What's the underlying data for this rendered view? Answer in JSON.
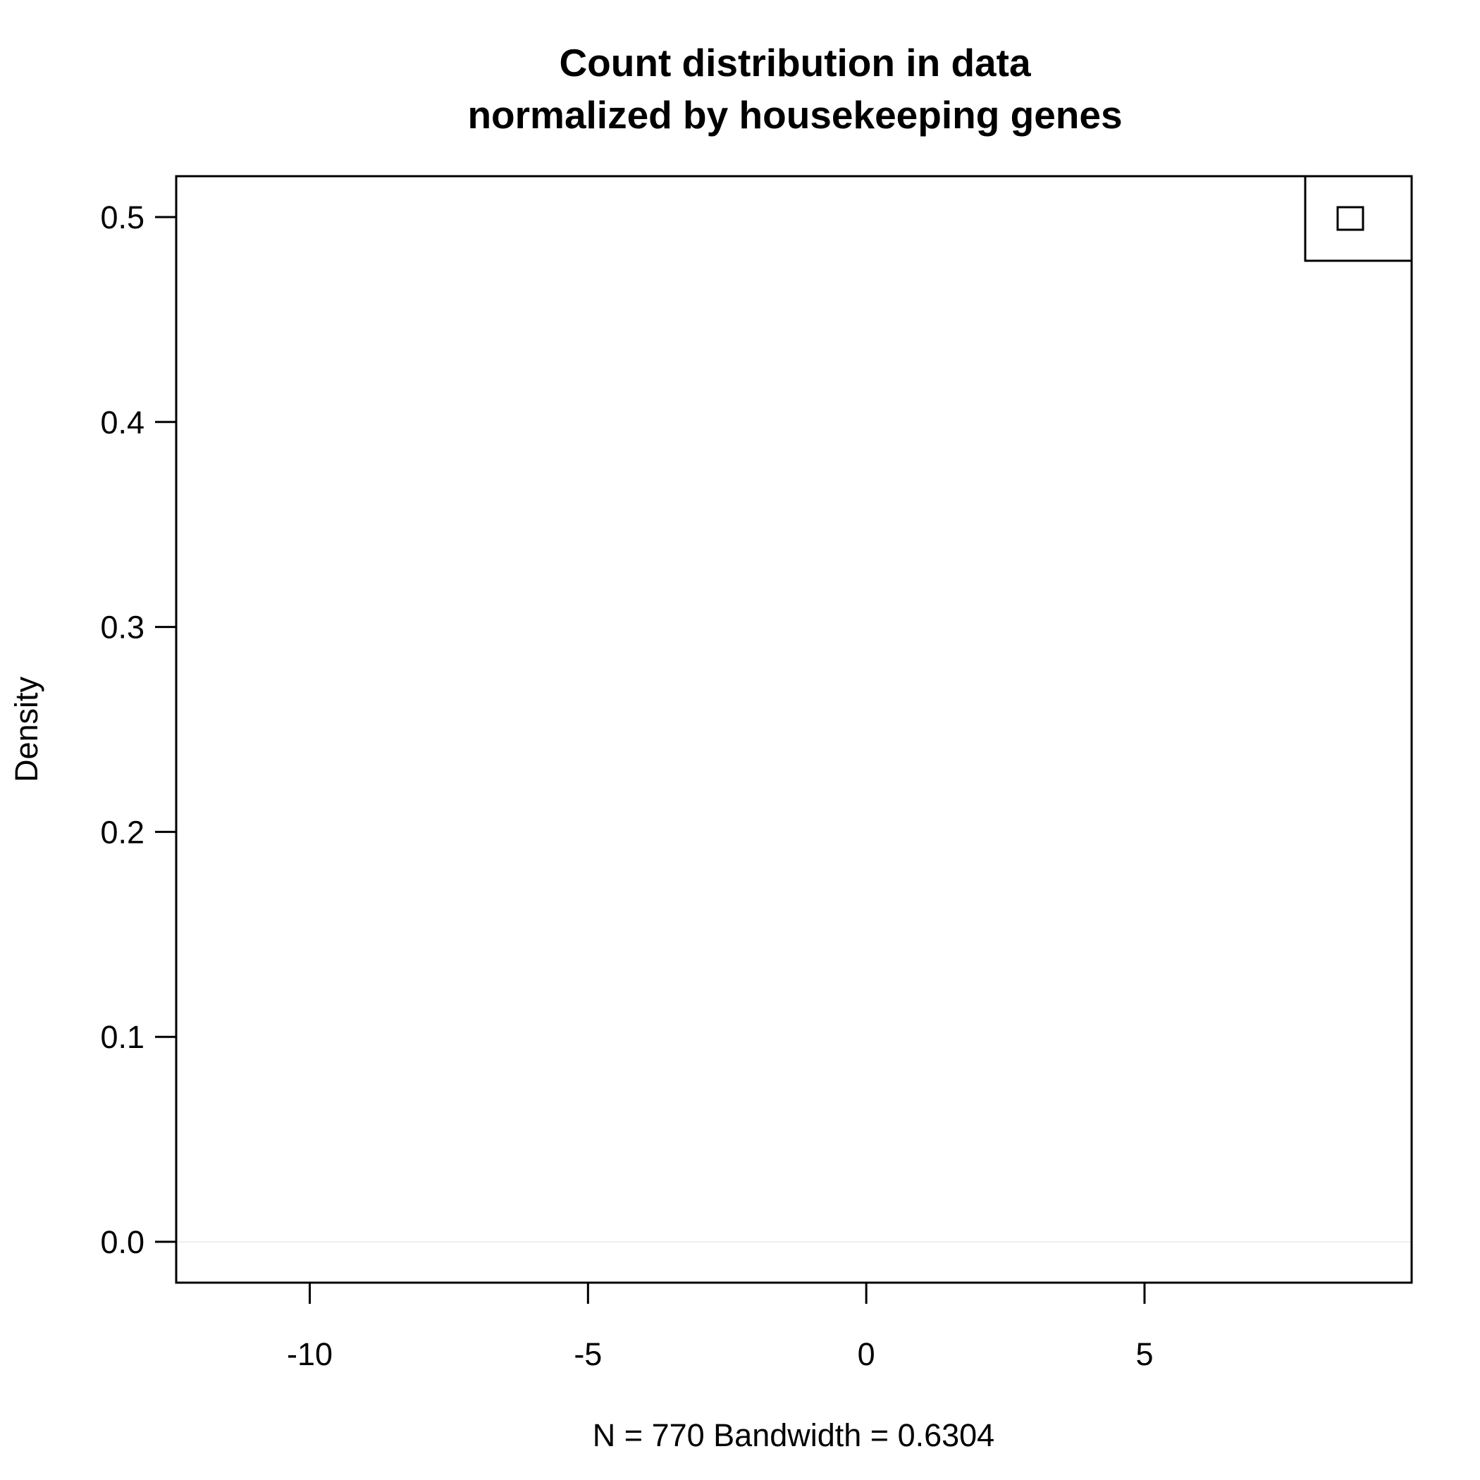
{
  "chart_data": {
    "type": "line",
    "title_lines": [
      "Count distribution in data",
      "normalized by housekeeping genes"
    ],
    "xlabel": "N = 770   Bandwidth = 0.6304",
    "ylabel": "Density",
    "xlim": [
      -12.4,
      9.8
    ],
    "ylim": [
      0,
      0.5
    ],
    "x_ticks": [
      -10,
      -5,
      0,
      5
    ],
    "x_tick_labels": [
      "-10",
      "-5",
      "0",
      "5"
    ],
    "y_ticks": [
      0.0,
      0.1,
      0.2,
      0.3,
      0.4,
      0.5
    ],
    "y_tick_labels": [
      "0.0",
      "0.1",
      "0.2",
      "0.3",
      "0.4",
      "0.5"
    ],
    "grid": false,
    "legend_placement": "top-right",
    "series": [
      {
        "values": [],
        "color": "#000000"
      }
    ],
    "colors": {
      "axis": "#000000",
      "background": "#ffffff",
      "zero_line": "#eeeeee"
    }
  }
}
